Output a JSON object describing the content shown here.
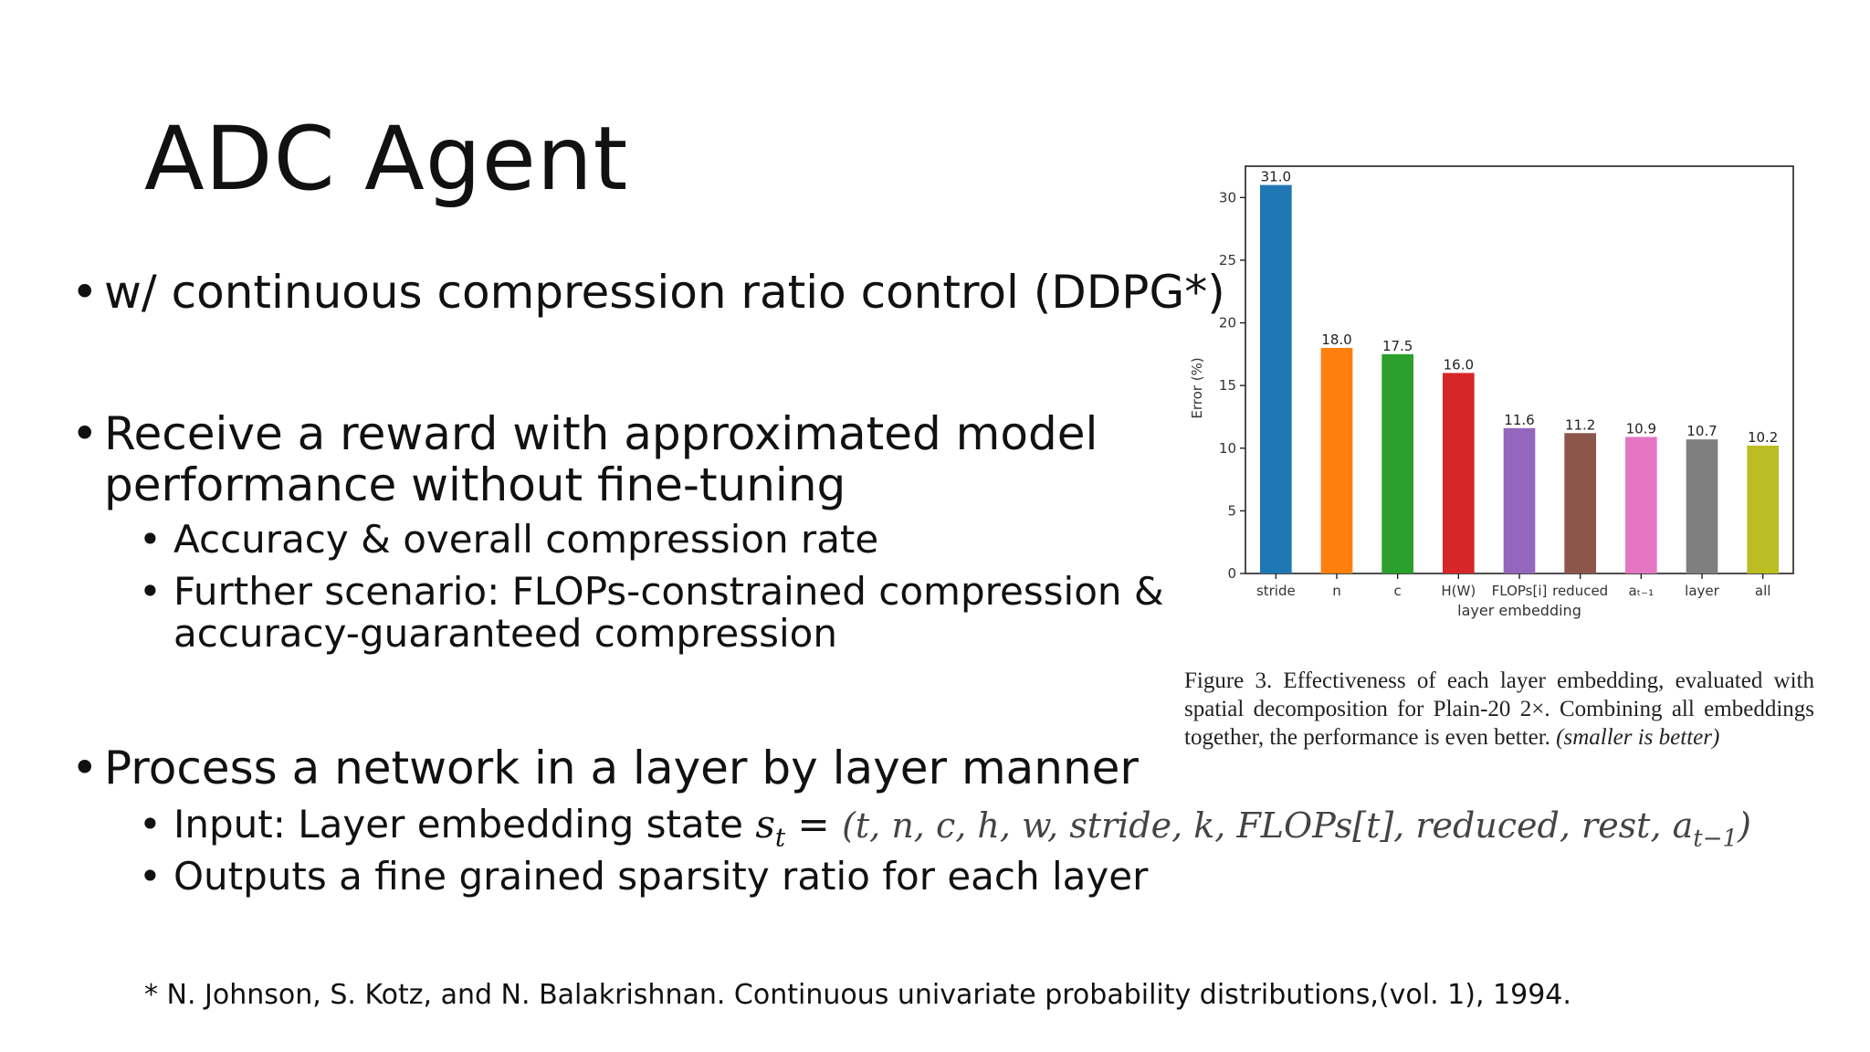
{
  "slide": {
    "title": "ADC Agent",
    "bullets": [
      {
        "text": "w/ continuous compression ratio control (DDPG*)"
      },
      {
        "text_line1": "Receive a reward with approximated model",
        "text_line2": "performance without fine-tuning",
        "sub": [
          "Accuracy & overall compression rate",
          "Further scenario: FLOPs-constrained compression &",
          "accuracy-guaranteed compression"
        ]
      },
      {
        "text": "Process a network in a layer by layer manner",
        "sub_input_prefix": "Input: Layer embedding state ",
        "sub_input_state": "s",
        "sub_input_subscript": "t",
        "sub_input_eq": " = ",
        "sub_input_math": "(t, n, c, h, w, stride, k, FLOPs[t], reduced, rest, a",
        "sub_input_math_sub": "t−1",
        "sub_input_math_end": ")",
        "sub_output": "Outputs a fine grained sparsity ratio for each layer"
      }
    ],
    "footnote": "* N. Johnson, S. Kotz, and N. Balakrishnan. Continuous univariate probability distributions,(vol. 1), 1994.",
    "caption": {
      "prefix": "Figure 3. Effectiveness of each layer embedding, evaluated with spatial decomposition for Plain-20 2×.  Combining all embeddings together, the performance is even better. ",
      "italic": "(smaller is better)"
    }
  },
  "chart_data": {
    "type": "bar",
    "categories": [
      "stride",
      "n",
      "c",
      "H(W)",
      "FLOPs[i]",
      "reduced",
      "a_{t-1}",
      "layer",
      "all"
    ],
    "category_labels": [
      "stride",
      "n",
      "c",
      "H(W)",
      "FLOPs[i]",
      "reduced",
      "aₜ₋₁",
      "layer",
      "all"
    ],
    "values": [
      31.0,
      18.0,
      17.5,
      16.0,
      11.6,
      11.2,
      10.9,
      10.7,
      10.2
    ],
    "value_labels": [
      "31.0",
      "18.0",
      "17.5",
      "16.0",
      "11.6",
      "11.2",
      "10.9",
      "10.7",
      "10.2"
    ],
    "colors": [
      "#1f77b4",
      "#ff7f0e",
      "#2ca02c",
      "#d62728",
      "#9467bd",
      "#8c564b",
      "#e377c2",
      "#7f7f7f",
      "#bcbd22"
    ],
    "xlabel": "layer embedding",
    "ylabel": "Error (%)",
    "ylim": [
      0,
      32.5
    ],
    "yticks": [
      0,
      5,
      10,
      15,
      20,
      25,
      30
    ],
    "grid": false
  }
}
